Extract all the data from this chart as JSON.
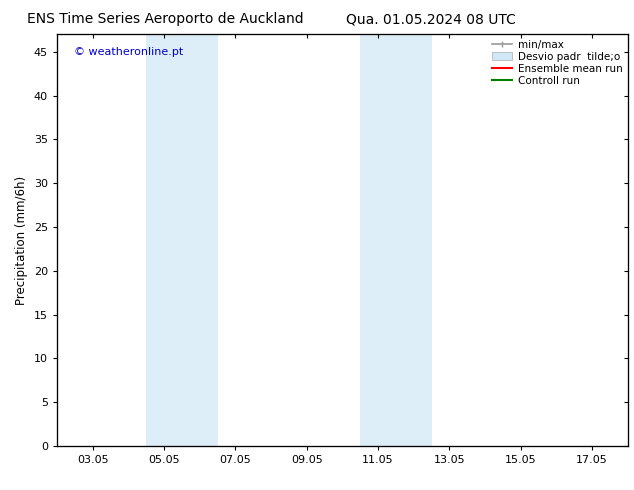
{
  "title_left": "ENS Time Series Aeroporto de Auckland",
  "title_right": "Qua. 01.05.2024 08 UTC",
  "ylabel": "Precipitation (mm/6h)",
  "xtick_labels": [
    "03.05",
    "05.05",
    "07.05",
    "09.05",
    "11.05",
    "13.05",
    "15.05",
    "17.05"
  ],
  "xtick_values": [
    0,
    2,
    4,
    6,
    8,
    10,
    12,
    14
  ],
  "ylim": [
    0,
    47
  ],
  "ytick_values": [
    0,
    5,
    10,
    15,
    20,
    25,
    30,
    35,
    40,
    45
  ],
  "watermark": "© weatheronline.pt",
  "watermark_color": "#0000cc",
  "background_color": "#ffffff",
  "plot_bg_color": "#ffffff",
  "shaded_bands": [
    {
      "x_start": 1.5,
      "x_end": 3.5,
      "color": "#ddeef8"
    },
    {
      "x_start": 7.5,
      "x_end": 9.5,
      "color": "#ddeef8"
    }
  ],
  "legend_items": [
    {
      "label": "min/max",
      "color": "#999999",
      "lw": 1.2,
      "ls": "-",
      "type": "line_with_caps"
    },
    {
      "label": "Desvio padr  tilde;o",
      "color": "#d0e8f8",
      "lw": 8,
      "ls": "-",
      "type": "patch"
    },
    {
      "label": "Ensemble mean run",
      "color": "#ff0000",
      "lw": 1.5,
      "ls": "-",
      "type": "line"
    },
    {
      "label": "Controll run",
      "color": "#008000",
      "lw": 1.5,
      "ls": "-",
      "type": "line"
    }
  ],
  "title_fontsize": 10,
  "tick_fontsize": 8,
  "ylabel_fontsize": 8.5,
  "legend_fontsize": 7.5
}
